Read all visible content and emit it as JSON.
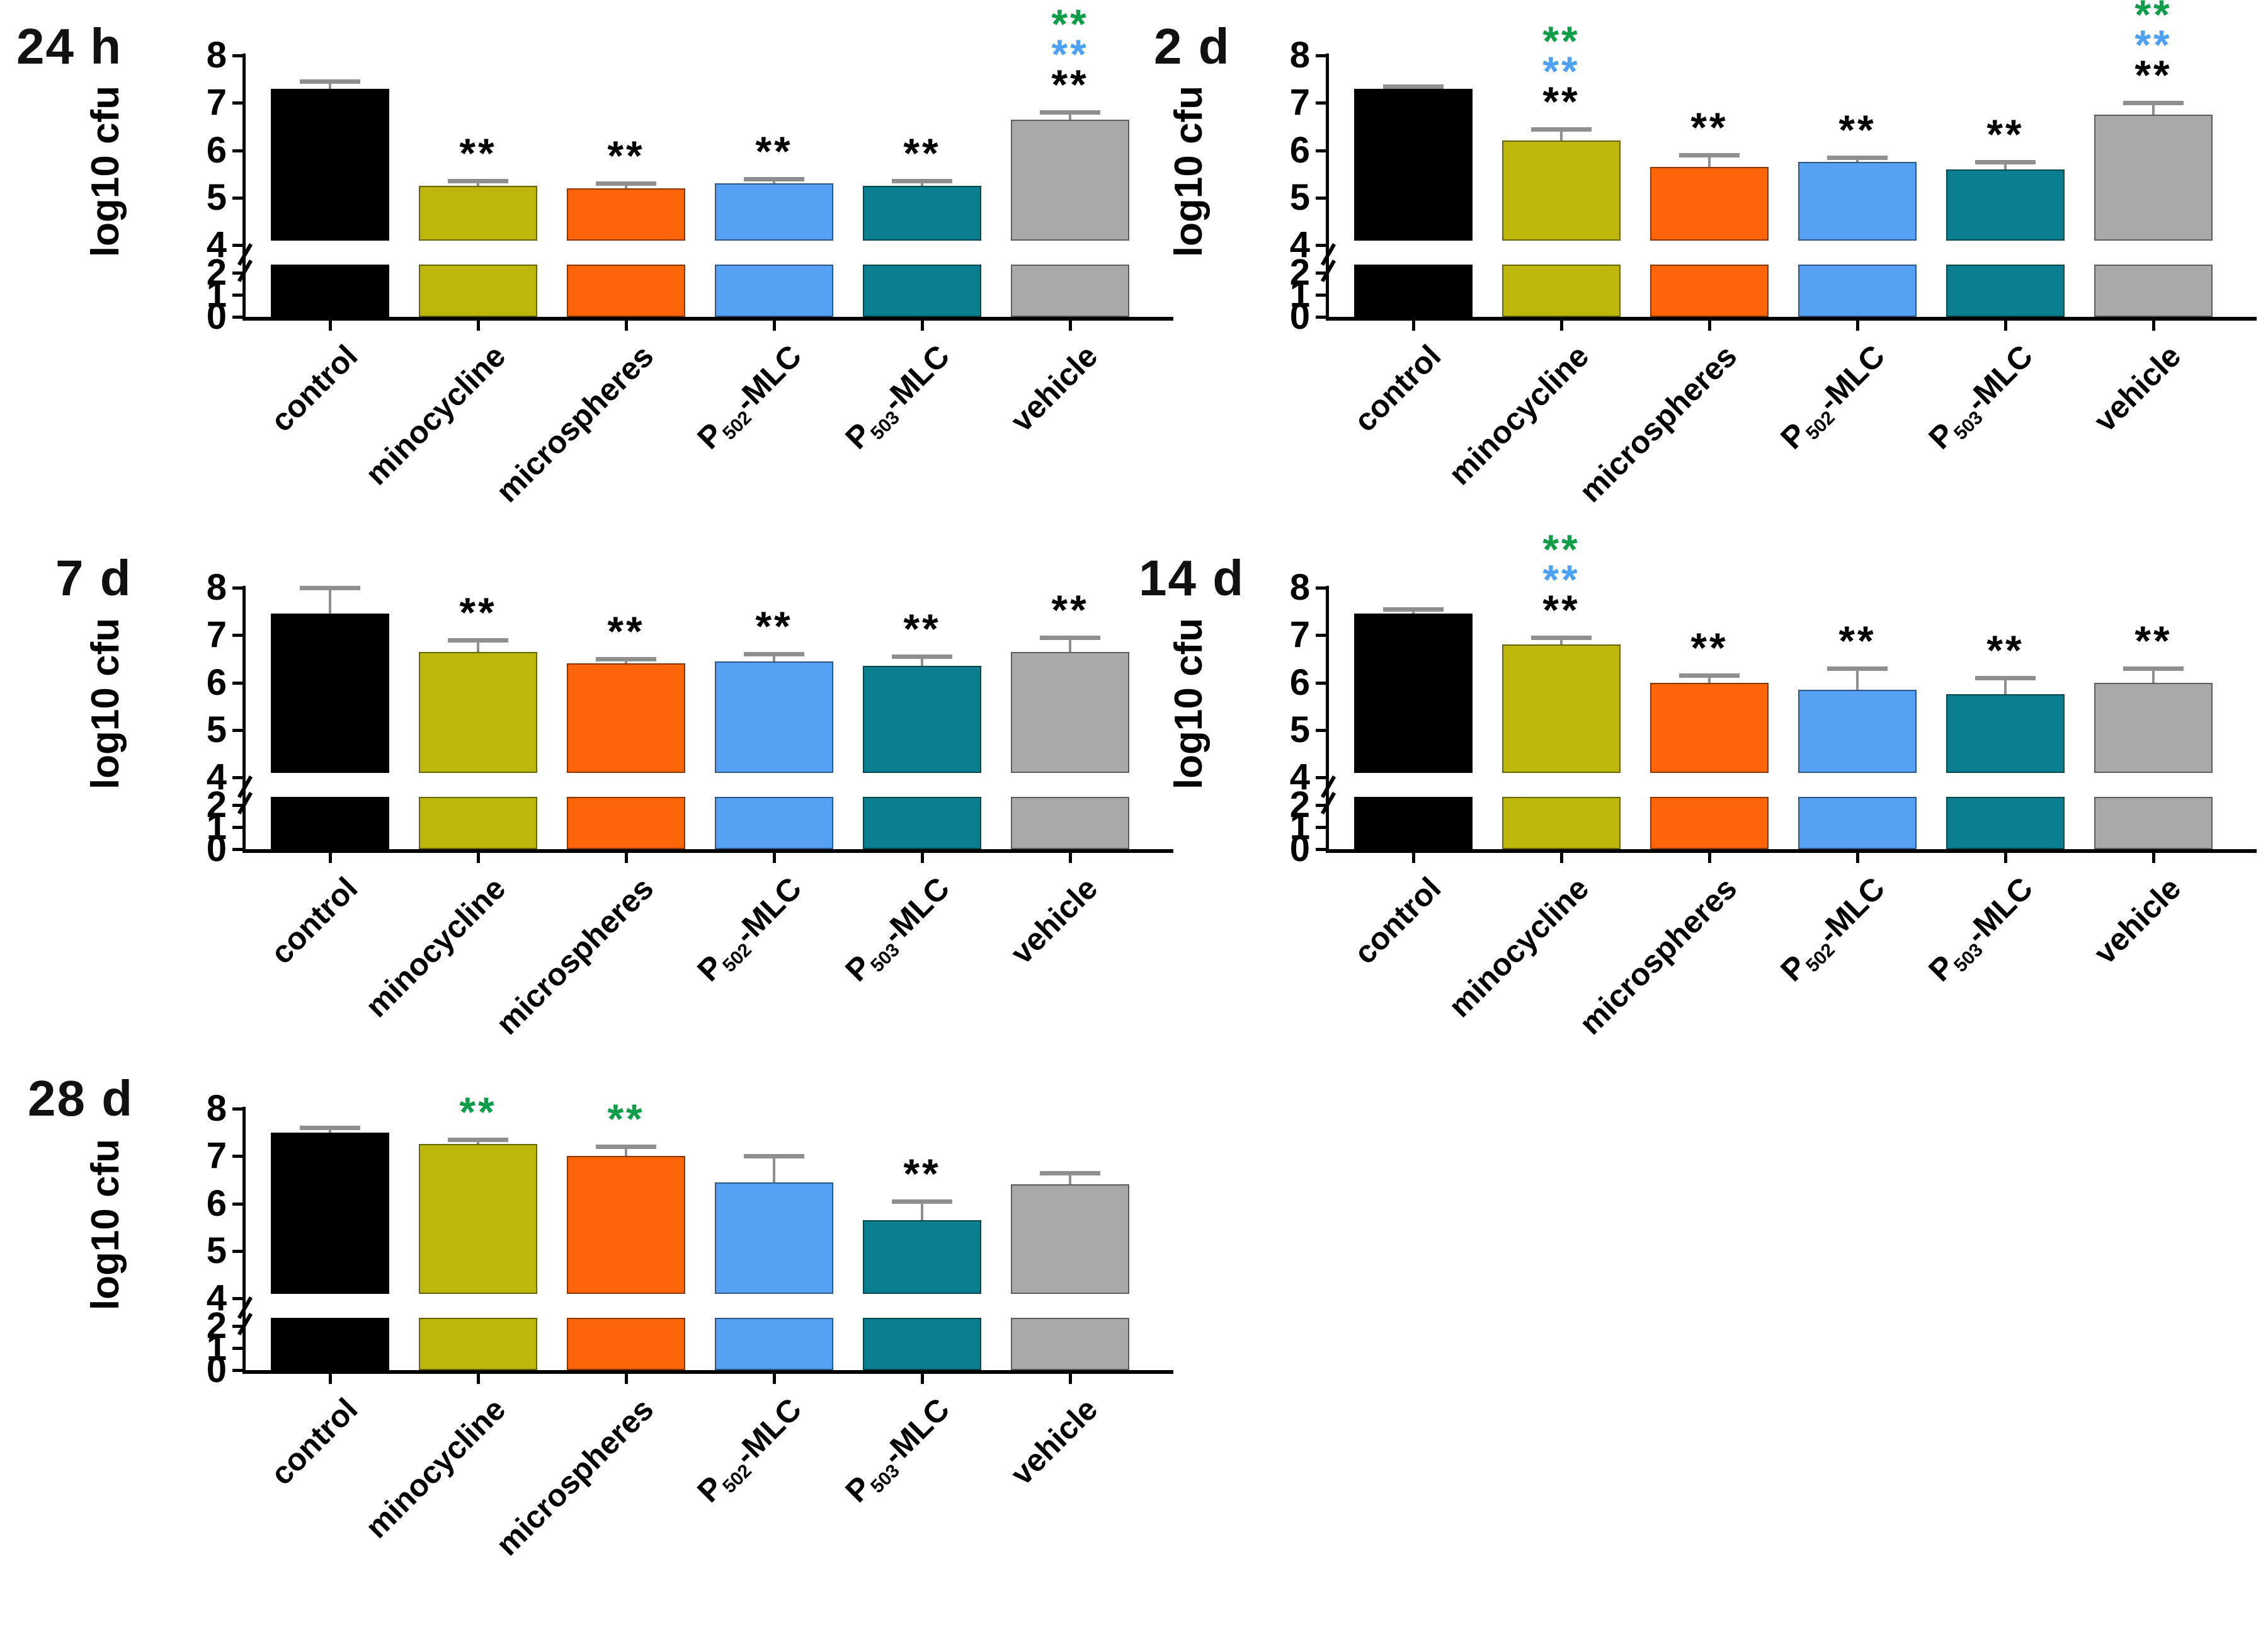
{
  "page": {
    "background": "#ffffff"
  },
  "chart_data": {
    "type": "bar",
    "figure_description": "Five bar charts of bacterial counts (log10 cfu) at 24 h, 2 d, 7 d, 14 d and 28 d for six treatment groups, with broken y-axis and significance asterisks",
    "ylabel": "log10 cfu",
    "categories": [
      "control",
      "minocycline",
      "microspheres",
      "P502-MLC",
      "P503-MLC",
      "vehicle"
    ],
    "categories_rich": [
      {
        "pre": "control"
      },
      {
        "pre": "minocycline"
      },
      {
        "pre": "microspheres"
      },
      {
        "pre": "P",
        "sub": "502",
        "post": "-MLC"
      },
      {
        "pre": "P",
        "sub": "503",
        "post": "-MLC"
      },
      {
        "pre": "vehicle"
      }
    ],
    "bar_colors": [
      "#000000",
      "#bdb60b",
      "#fe6408",
      "#57a1f5",
      "#0a7f8f",
      "#a9a9a9"
    ],
    "sig_colors": {
      "black": "#000000",
      "blue": "#4da2f7",
      "green": "#0e9e4a"
    },
    "error_color": "#8f8f8f",
    "yticks": [
      0,
      1,
      2,
      4,
      5,
      6,
      7,
      8
    ],
    "ybreak": [
      2,
      4
    ],
    "ylim": [
      0,
      8
    ],
    "grid": false,
    "legend": "none",
    "sig_symbol": "**",
    "charts": [
      {
        "title": "24 h",
        "values": [
          7.3,
          5.25,
          5.2,
          5.3,
          5.25,
          6.65
        ],
        "errors": [
          7.45,
          5.35,
          5.3,
          5.4,
          5.35,
          6.8
        ],
        "sig": [
          [],
          [
            "black"
          ],
          [
            "black"
          ],
          [
            "black"
          ],
          [
            "black"
          ],
          [
            "green",
            "blue",
            "black"
          ]
        ]
      },
      {
        "title": "2 d",
        "values": [
          7.3,
          6.2,
          5.65,
          5.75,
          5.6,
          6.75
        ],
        "errors": [
          7.35,
          6.45,
          5.9,
          5.85,
          5.75,
          7.0
        ],
        "sig": [
          [],
          [
            "green",
            "blue",
            "black"
          ],
          [
            "black"
          ],
          [
            "black"
          ],
          [
            "black"
          ],
          [
            "green",
            "blue",
            "black"
          ]
        ]
      },
      {
        "title": "7 d",
        "values": [
          7.45,
          6.65,
          6.4,
          6.45,
          6.35,
          6.65
        ],
        "errors": [
          8.0,
          6.9,
          6.5,
          6.6,
          6.55,
          6.95
        ],
        "sig": [
          [],
          [
            "black"
          ],
          [
            "black"
          ],
          [
            "black"
          ],
          [
            "black"
          ],
          [
            "black"
          ]
        ]
      },
      {
        "title": "14 d",
        "values": [
          7.45,
          6.8,
          6.0,
          5.85,
          5.75,
          6.0
        ],
        "errors": [
          7.55,
          6.95,
          6.15,
          6.3,
          6.1,
          6.3
        ],
        "sig": [
          [],
          [
            "green",
            "blue",
            "black"
          ],
          [
            "black"
          ],
          [
            "black"
          ],
          [
            "black"
          ],
          [
            "black"
          ]
        ]
      },
      {
        "title": "28 d",
        "values": [
          7.5,
          7.25,
          7.0,
          6.45,
          5.65,
          6.4
        ],
        "errors": [
          7.6,
          7.35,
          7.2,
          7.0,
          6.05,
          6.65
        ],
        "sig": [
          [],
          [
            "green"
          ],
          [
            "green"
          ],
          [],
          [
            "black"
          ],
          []
        ]
      }
    ]
  }
}
